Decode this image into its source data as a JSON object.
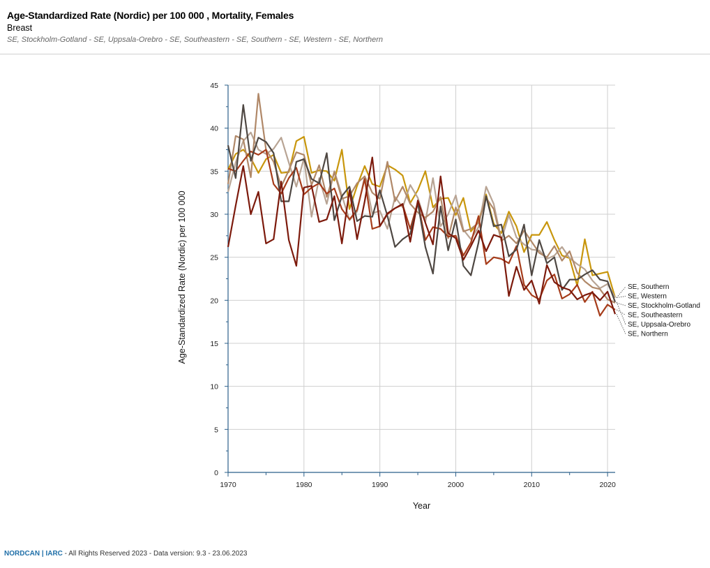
{
  "header": {
    "title": "Age-Standardized Rate (Nordic) per 100 000 , Mortality, Females",
    "subtitle": "Breast",
    "populations": "SE, Stockholm-Gotland - SE, Uppsala-Orebro - SE, Southeastern - SE, Southern - SE, Western - SE, Northern"
  },
  "footer": {
    "brand": "NORDCAN | IARC",
    "text": " - All Rights Reserved 2023 - Data version: 9.3 - 23.06.2023"
  },
  "chart_data": {
    "type": "line",
    "title": "Age-Standardized Rate (Nordic) per 100 000 , Mortality, Females",
    "subtitle": "Breast",
    "xlabel": "Year",
    "ylabel": "Age-Standardized Rate (Nordic) per 100 000",
    "xlim": [
      1970,
      2021
    ],
    "ylim": [
      0,
      45
    ],
    "x_ticks": [
      1970,
      1980,
      1990,
      2000,
      2010,
      2020
    ],
    "y_ticks": [
      0,
      5,
      10,
      15,
      20,
      25,
      30,
      35,
      40,
      45
    ],
    "grid": true,
    "legend_position": "right, at line ends",
    "x": [
      1970,
      1971,
      1972,
      1973,
      1974,
      1975,
      1976,
      1977,
      1978,
      1979,
      1980,
      1981,
      1982,
      1983,
      1984,
      1985,
      1986,
      1987,
      1988,
      1989,
      1990,
      1991,
      1992,
      1993,
      1994,
      1995,
      1996,
      1997,
      1998,
      1999,
      2000,
      2001,
      2002,
      2003,
      2004,
      2005,
      2006,
      2007,
      2008,
      2009,
      2010,
      2011,
      2012,
      2013,
      2014,
      2015,
      2016,
      2017,
      2018,
      2019,
      2020,
      2021
    ],
    "series": [
      {
        "name": "SE, Southern",
        "color": "#c8960c",
        "values": [
          35.2,
          37.0,
          37.5,
          36.5,
          34.8,
          36.4,
          36.9,
          34.8,
          34.9,
          38.5,
          39.0,
          34.8,
          35.1,
          35.0,
          33.9,
          37.5,
          30.6,
          33.3,
          35.6,
          33.5,
          33.2,
          35.7,
          35.2,
          34.5,
          31.3,
          32.8,
          35.0,
          30.8,
          31.8,
          31.9,
          29.9,
          31.9,
          28.0,
          29.1,
          32.3,
          28.9,
          27.8,
          30.3,
          28.6,
          25.6,
          27.6,
          27.6,
          29.1,
          27.0,
          25.2,
          24.9,
          21.7,
          27.1,
          22.9,
          23.1,
          23.3,
          20.3
        ]
      },
      {
        "name": "SE, Western",
        "color": "#b8a494",
        "values": [
          32.6,
          36.0,
          38.5,
          39.5,
          37.5,
          37.0,
          37.6,
          38.9,
          36.0,
          33.2,
          36.5,
          29.7,
          34.2,
          31.2,
          35.0,
          32.2,
          29.3,
          30.3,
          34.4,
          30.1,
          30.4,
          28.3,
          32.0,
          30.8,
          33.4,
          31.9,
          29.1,
          34.2,
          28.6,
          30.0,
          32.2,
          28.2,
          27.1,
          28.5,
          33.2,
          31.2,
          27.0,
          29.9,
          27.3,
          26.5,
          25.9,
          25.8,
          24.8,
          25.2,
          26.2,
          24.9,
          24.2,
          23.6,
          22.3,
          21.4,
          21.9,
          20.3
        ]
      },
      {
        "name": "SE, Stockholm-Gotland",
        "color": "#b08868",
        "values": [
          33.5,
          39.1,
          38.7,
          34.3,
          44.0,
          37.5,
          36.1,
          33.2,
          35.1,
          37.2,
          36.9,
          33.4,
          35.7,
          32.0,
          34.9,
          31.8,
          32.1,
          33.6,
          34.4,
          32.5,
          31.8,
          36.1,
          31.5,
          33.2,
          31.2,
          30.2,
          29.6,
          30.3,
          32.0,
          27.2,
          30.8,
          28.0,
          28.3,
          29.0,
          31.9,
          30.6,
          26.9,
          27.5,
          26.6,
          28.1,
          26.8,
          25.5,
          25.0,
          26.3,
          24.6,
          25.7,
          23.2,
          22.2,
          21.5,
          21.3,
          20.1,
          19.7
        ]
      },
      {
        "name": "SE, Southeastern",
        "color": "#a63c1a",
        "values": [
          35.3,
          35.0,
          36.2,
          37.3,
          36.9,
          37.5,
          33.5,
          32.4,
          34.2,
          35.4,
          32.3,
          33.1,
          33.6,
          32.4,
          33.0,
          30.6,
          29.4,
          30.5,
          34.1,
          28.3,
          28.6,
          30.0,
          30.7,
          31.1,
          28.3,
          31.4,
          27.0,
          28.5,
          28.3,
          27.4,
          27.5,
          25.2,
          26.7,
          29.8,
          24.2,
          25.0,
          24.8,
          24.3,
          26.3,
          21.8,
          20.6,
          20.1,
          22.3,
          23.0,
          20.2,
          20.7,
          21.8,
          19.8,
          21.0,
          18.2,
          19.5,
          18.9
        ]
      },
      {
        "name": "SE, Uppsala-Orebro",
        "color": "#4e4742",
        "values": [
          38.0,
          34.2,
          42.7,
          36.2,
          38.9,
          38.4,
          37.1,
          31.5,
          31.5,
          36.1,
          36.4,
          34.1,
          33.6,
          37.1,
          29.3,
          32.1,
          33.2,
          29.2,
          29.8,
          29.7,
          32.8,
          29.8,
          26.2,
          27.1,
          27.7,
          31.3,
          26.2,
          23.1,
          30.9,
          25.8,
          29.4,
          24.0,
          22.9,
          26.7,
          32.1,
          28.6,
          28.8,
          25.1,
          25.9,
          28.8,
          22.9,
          27.0,
          24.3,
          25.0,
          21.2,
          22.4,
          22.4,
          23.0,
          23.5,
          22.4,
          22.2,
          19.8
        ]
      },
      {
        "name": "SE, Northern",
        "color": "#7c1a0c",
        "values": [
          26.2,
          31.0,
          35.6,
          30.0,
          32.6,
          26.6,
          27.1,
          33.8,
          27.0,
          24.0,
          33.1,
          33.3,
          29.1,
          29.4,
          32.1,
          26.6,
          32.8,
          27.1,
          31.5,
          36.6,
          28.6,
          30.1,
          30.7,
          31.2,
          26.8,
          31.6,
          29.0,
          26.5,
          34.4,
          27.8,
          27.2,
          24.7,
          26.3,
          28.1,
          25.7,
          27.6,
          27.3,
          20.5,
          23.9,
          21.2,
          22.3,
          19.6,
          24.1,
          22.1,
          21.5,
          21.2,
          20.1,
          20.6,
          20.9,
          20.0,
          21.0,
          18.4
        ]
      }
    ]
  }
}
